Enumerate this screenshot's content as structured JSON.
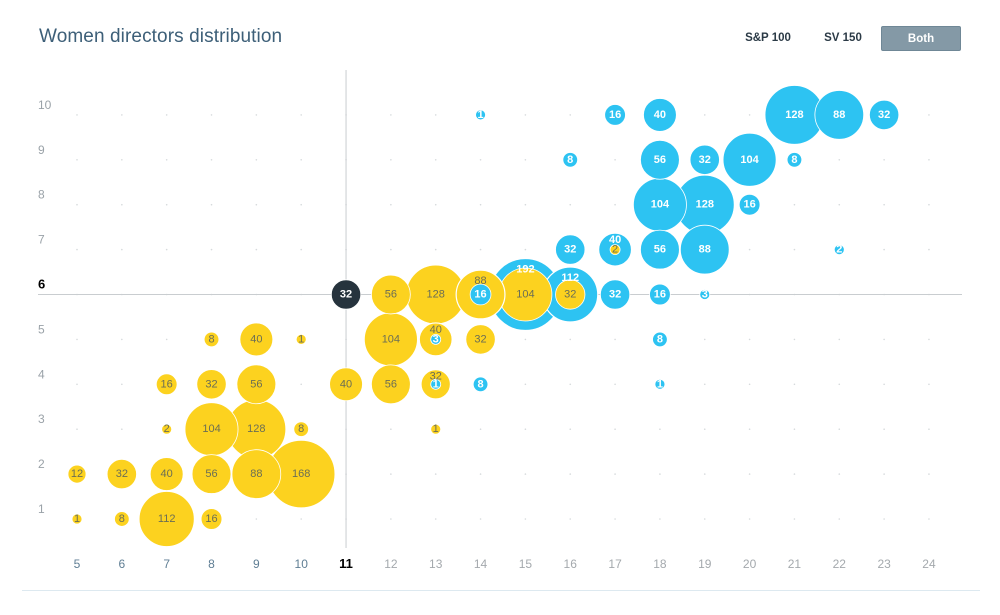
{
  "header": {
    "title": "Women directors distribution"
  },
  "toggles": [
    {
      "label": "S&P 100",
      "active": false
    },
    {
      "label": "SV 150",
      "active": false
    },
    {
      "label": "Both",
      "active": true
    }
  ],
  "colors": {
    "sp100": "#fcd21f",
    "sv150": "#2dc3f2",
    "highlight": "#26333d",
    "crosshair": "#c9cdd0",
    "grid_dot": "#d6dadc"
  },
  "chart_data": {
    "type": "scatter",
    "subtype": "bubble",
    "title": "Women directors distribution",
    "xlabel": "",
    "ylabel": "",
    "x_ticks": [
      5,
      6,
      7,
      8,
      9,
      10,
      11,
      12,
      13,
      14,
      15,
      16,
      17,
      18,
      19,
      20,
      21,
      22,
      23,
      24
    ],
    "y_ticks": [
      1,
      2,
      3,
      4,
      5,
      6,
      7,
      8,
      9,
      10
    ],
    "xlim": [
      5,
      24
    ],
    "ylim": [
      1,
      10
    ],
    "grid": "dots",
    "crosshair": {
      "x": 11,
      "y": 6,
      "value": 32
    },
    "series": [
      {
        "name": "S&P 100",
        "color": "#fcd21f",
        "points": [
          {
            "x": 5,
            "y": 1,
            "v": 1
          },
          {
            "x": 6,
            "y": 1,
            "v": 8
          },
          {
            "x": 7,
            "y": 1,
            "v": 112
          },
          {
            "x": 8,
            "y": 1,
            "v": 16
          },
          {
            "x": 5,
            "y": 2,
            "v": 12
          },
          {
            "x": 6,
            "y": 2,
            "v": 32
          },
          {
            "x": 7,
            "y": 2,
            "v": 40
          },
          {
            "x": 8,
            "y": 2,
            "v": 56
          },
          {
            "x": 9,
            "y": 2,
            "v": 88
          },
          {
            "x": 10,
            "y": 2,
            "v": 168
          },
          {
            "x": 7,
            "y": 3,
            "v": 2
          },
          {
            "x": 8,
            "y": 3,
            "v": 104
          },
          {
            "x": 9,
            "y": 3,
            "v": 128
          },
          {
            "x": 10,
            "y": 3,
            "v": 8
          },
          {
            "x": 13,
            "y": 3,
            "v": 1
          },
          {
            "x": 7,
            "y": 4,
            "v": 16
          },
          {
            "x": 8,
            "y": 4,
            "v": 32
          },
          {
            "x": 9,
            "y": 4,
            "v": 56
          },
          {
            "x": 11,
            "y": 4,
            "v": 40
          },
          {
            "x": 12,
            "y": 4,
            "v": 56
          },
          {
            "x": 13,
            "y": 4,
            "v": 32
          },
          {
            "x": 8,
            "y": 5,
            "v": 8
          },
          {
            "x": 9,
            "y": 5,
            "v": 40
          },
          {
            "x": 10,
            "y": 5,
            "v": 1
          },
          {
            "x": 12,
            "y": 5,
            "v": 104
          },
          {
            "x": 13,
            "y": 5,
            "v": 40
          },
          {
            "x": 14,
            "y": 5,
            "v": 32
          },
          {
            "x": 11,
            "y": 6,
            "v": 32
          },
          {
            "x": 12,
            "y": 6,
            "v": 56
          },
          {
            "x": 13,
            "y": 6,
            "v": 128
          },
          {
            "x": 14,
            "y": 6,
            "v": 88
          },
          {
            "x": 15,
            "y": 6,
            "v": 104
          },
          {
            "x": 16,
            "y": 6,
            "v": 32
          },
          {
            "x": 17,
            "y": 7,
            "v": 2
          }
        ]
      },
      {
        "name": "SV 150",
        "color": "#2dc3f2",
        "points": [
          {
            "x": 18,
            "y": 4,
            "v": 1
          },
          {
            "x": 13,
            "y": 4,
            "v": 1
          },
          {
            "x": 14,
            "y": 4,
            "v": 8
          },
          {
            "x": 13,
            "y": 5,
            "v": 3
          },
          {
            "x": 18,
            "y": 5,
            "v": 8
          },
          {
            "x": 14,
            "y": 6,
            "v": 16
          },
          {
            "x": 15,
            "y": 6,
            "v": 192
          },
          {
            "x": 16,
            "y": 6,
            "v": 112
          },
          {
            "x": 17,
            "y": 6,
            "v": 32
          },
          {
            "x": 18,
            "y": 6,
            "v": 16
          },
          {
            "x": 19,
            "y": 6,
            "v": 3
          },
          {
            "x": 16,
            "y": 7,
            "v": 32
          },
          {
            "x": 17,
            "y": 7,
            "v": 40
          },
          {
            "x": 18,
            "y": 7,
            "v": 56
          },
          {
            "x": 19,
            "y": 7,
            "v": 88
          },
          {
            "x": 22,
            "y": 7,
            "v": 2
          },
          {
            "x": 18,
            "y": 8,
            "v": 104
          },
          {
            "x": 19,
            "y": 8,
            "v": 128
          },
          {
            "x": 20,
            "y": 8,
            "v": 16
          },
          {
            "x": 16,
            "y": 9,
            "v": 8
          },
          {
            "x": 18,
            "y": 9,
            "v": 56
          },
          {
            "x": 19,
            "y": 9,
            "v": 32
          },
          {
            "x": 20,
            "y": 9,
            "v": 104
          },
          {
            "x": 21,
            "y": 9,
            "v": 8
          },
          {
            "x": 14,
            "y": 10,
            "v": 1
          },
          {
            "x": 17,
            "y": 10,
            "v": 16
          },
          {
            "x": 18,
            "y": 10,
            "v": 40
          },
          {
            "x": 21,
            "y": 10,
            "v": 128
          },
          {
            "x": 22,
            "y": 10,
            "v": 88
          },
          {
            "x": 23,
            "y": 10,
            "v": 32
          }
        ]
      }
    ]
  }
}
